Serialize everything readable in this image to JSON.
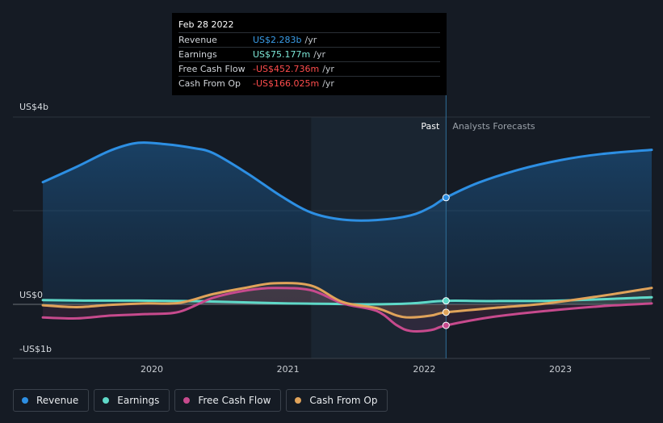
{
  "tooltip": {
    "date": "Feb 28 2022",
    "rows": [
      {
        "label": "Revenue",
        "value": "US$2.283b",
        "unit": "/yr",
        "color": "#3a9de8"
      },
      {
        "label": "Earnings",
        "value": "US$75.177m",
        "unit": "/yr",
        "color": "#7de8d8"
      },
      {
        "label": "Free Cash Flow",
        "value": "-US$452.736m",
        "unit": "/yr",
        "color": "#ff4d4d"
      },
      {
        "label": "Cash From Op",
        "value": "-US$166.025m",
        "unit": "/yr",
        "color": "#ff4d4d"
      }
    ]
  },
  "legend": [
    {
      "label": "Revenue",
      "color": "#2d8fe3"
    },
    {
      "label": "Earnings",
      "color": "#5fd9c8"
    },
    {
      "label": "Free Cash Flow",
      "color": "#c74a8d"
    },
    {
      "label": "Cash From Op",
      "color": "#e0a35a"
    }
  ],
  "chart_data": {
    "type": "line",
    "y_tick_labels": [
      "US$4b",
      "US$0",
      "-US$1b"
    ],
    "x_tick_labels": [
      "2020",
      "2021",
      "2022",
      "2023"
    ],
    "ylim": [
      -1.0,
      4.0
    ],
    "x_range": [
      2019.2,
      2023.67
    ],
    "past_label": "Past",
    "forecast_label": "Analysts Forecasts",
    "past_end": 2022.16,
    "shaded_band": [
      2021.17,
      2022.16
    ],
    "grid": true,
    "series": [
      {
        "name": "Revenue",
        "color": "#2d8fe3",
        "fill": true,
        "x": [
          2019.2,
          2019.45,
          2019.7,
          2019.9,
          2020.1,
          2020.3,
          2020.45,
          2020.7,
          2020.95,
          2021.17,
          2021.4,
          2021.65,
          2021.9,
          2022.05,
          2022.16,
          2022.4,
          2022.7,
          2023.0,
          2023.3,
          2023.67
        ],
        "y": [
          2.61,
          2.94,
          3.29,
          3.45,
          3.42,
          3.34,
          3.23,
          2.8,
          2.31,
          1.96,
          1.81,
          1.8,
          1.9,
          2.08,
          2.28,
          2.6,
          2.88,
          3.08,
          3.21,
          3.3
        ]
      },
      {
        "name": "Earnings",
        "color": "#5fd9c8",
        "fill": false,
        "x": [
          2019.2,
          2019.5,
          2019.9,
          2020.3,
          2020.7,
          2021.0,
          2021.3,
          2021.6,
          2021.9,
          2022.16,
          2022.5,
          2023.0,
          2023.67
        ],
        "y": [
          0.09,
          0.08,
          0.08,
          0.07,
          0.04,
          0.02,
          0.01,
          0.0,
          0.02,
          0.075,
          0.07,
          0.08,
          0.15
        ]
      },
      {
        "name": "Free Cash Flow",
        "color": "#c74a8d",
        "fill": false,
        "x": [
          2019.2,
          2019.45,
          2019.7,
          2019.95,
          2020.2,
          2020.45,
          2020.7,
          2020.9,
          2021.17,
          2021.4,
          2021.65,
          2021.8,
          2021.9,
          2022.05,
          2022.16,
          2022.5,
          2022.9,
          2023.3,
          2023.67
        ],
        "y": [
          -0.28,
          -0.3,
          -0.24,
          -0.21,
          -0.16,
          0.14,
          0.3,
          0.35,
          0.3,
          0.02,
          -0.14,
          -0.45,
          -0.57,
          -0.55,
          -0.45,
          -0.27,
          -0.14,
          -0.04,
          0.02
        ]
      },
      {
        "name": "Cash From Op",
        "color": "#e0a35a",
        "fill": false,
        "x": [
          2019.2,
          2019.45,
          2019.7,
          2019.95,
          2020.2,
          2020.45,
          2020.7,
          2020.9,
          2021.17,
          2021.4,
          2021.65,
          2021.8,
          2021.9,
          2022.05,
          2022.16,
          2022.5,
          2022.9,
          2023.3,
          2023.67
        ],
        "y": [
          -0.02,
          -0.06,
          -0.01,
          0.02,
          0.03,
          0.22,
          0.36,
          0.45,
          0.4,
          0.05,
          -0.08,
          -0.24,
          -0.28,
          -0.24,
          -0.17,
          -0.08,
          0.02,
          0.18,
          0.35
        ]
      }
    ]
  }
}
